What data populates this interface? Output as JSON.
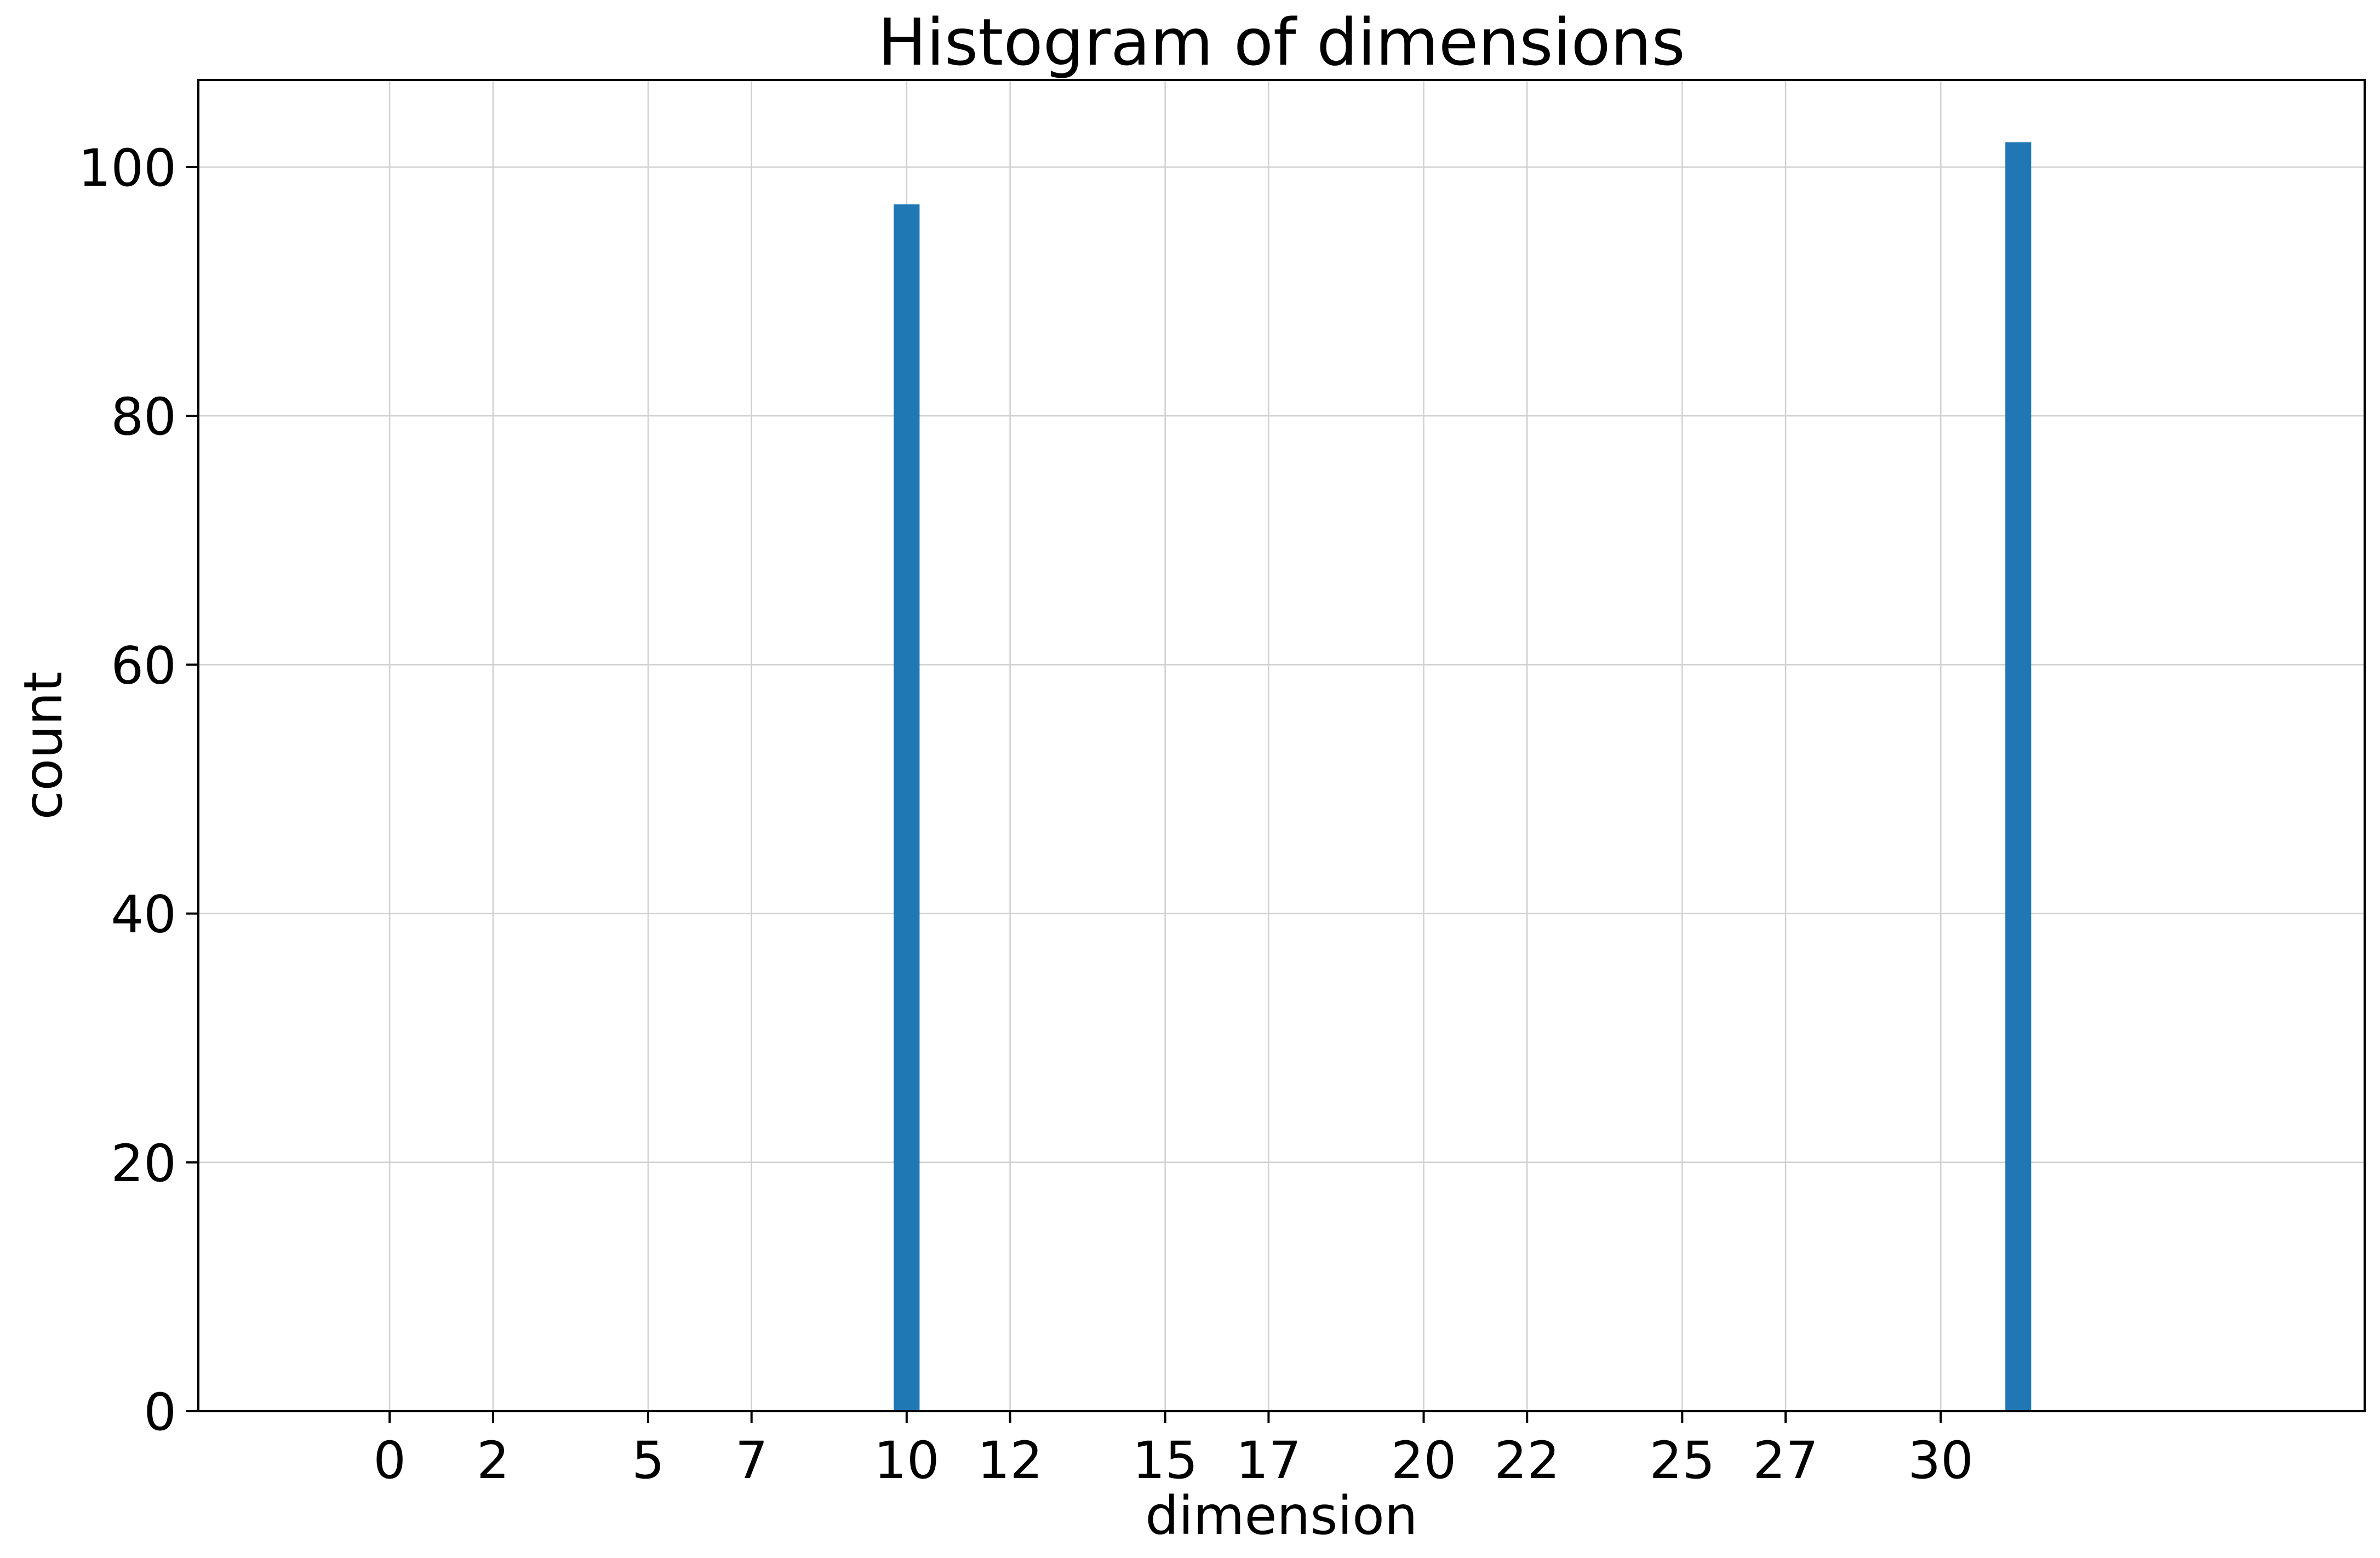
{
  "chart_data": {
    "type": "bar",
    "title": "Histogram of dimensions",
    "xlabel": "dimension",
    "ylabel": "count",
    "x_ticks": [
      0,
      2,
      5,
      7,
      10,
      12,
      15,
      17,
      20,
      22,
      25,
      27,
      30
    ],
    "y_ticks": [
      0,
      20,
      40,
      60,
      80,
      100
    ],
    "xlim": [
      -3.7,
      38.2
    ],
    "ylim": [
      0,
      107
    ],
    "grid": true,
    "bar_width": 0.5,
    "bars": [
      {
        "x": 10,
        "value": 97
      },
      {
        "x": 31.5,
        "value": 102
      }
    ],
    "colors": {
      "bar": "#1f77b4",
      "grid": "#d0d0d0",
      "axis": "#000000"
    }
  }
}
